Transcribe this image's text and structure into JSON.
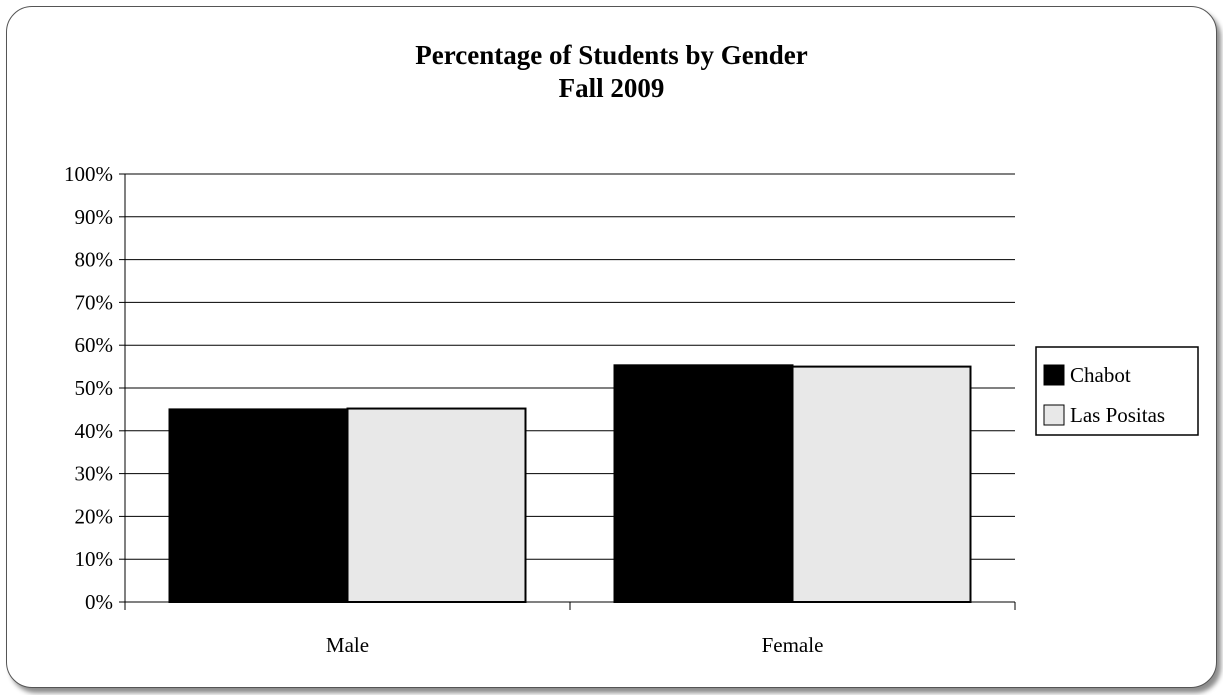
{
  "chart_data": {
    "type": "bar",
    "title": "Percentage of Students by Gender",
    "subtitle": "Fall 2009",
    "categories": [
      "Male",
      "Female"
    ],
    "series": [
      {
        "name": "Chabot",
        "values": [
          45,
          55.3
        ],
        "color": "#000000"
      },
      {
        "name": "Las Positas",
        "values": [
          45.2,
          55
        ],
        "color": "#e8e8e8"
      }
    ],
    "ylim": [
      0,
      100
    ],
    "yticks": [
      "0%",
      "10%",
      "20%",
      "30%",
      "40%",
      "50%",
      "60%",
      "70%",
      "80%",
      "90%",
      "100%"
    ],
    "grid": true,
    "legend_position": "right"
  }
}
